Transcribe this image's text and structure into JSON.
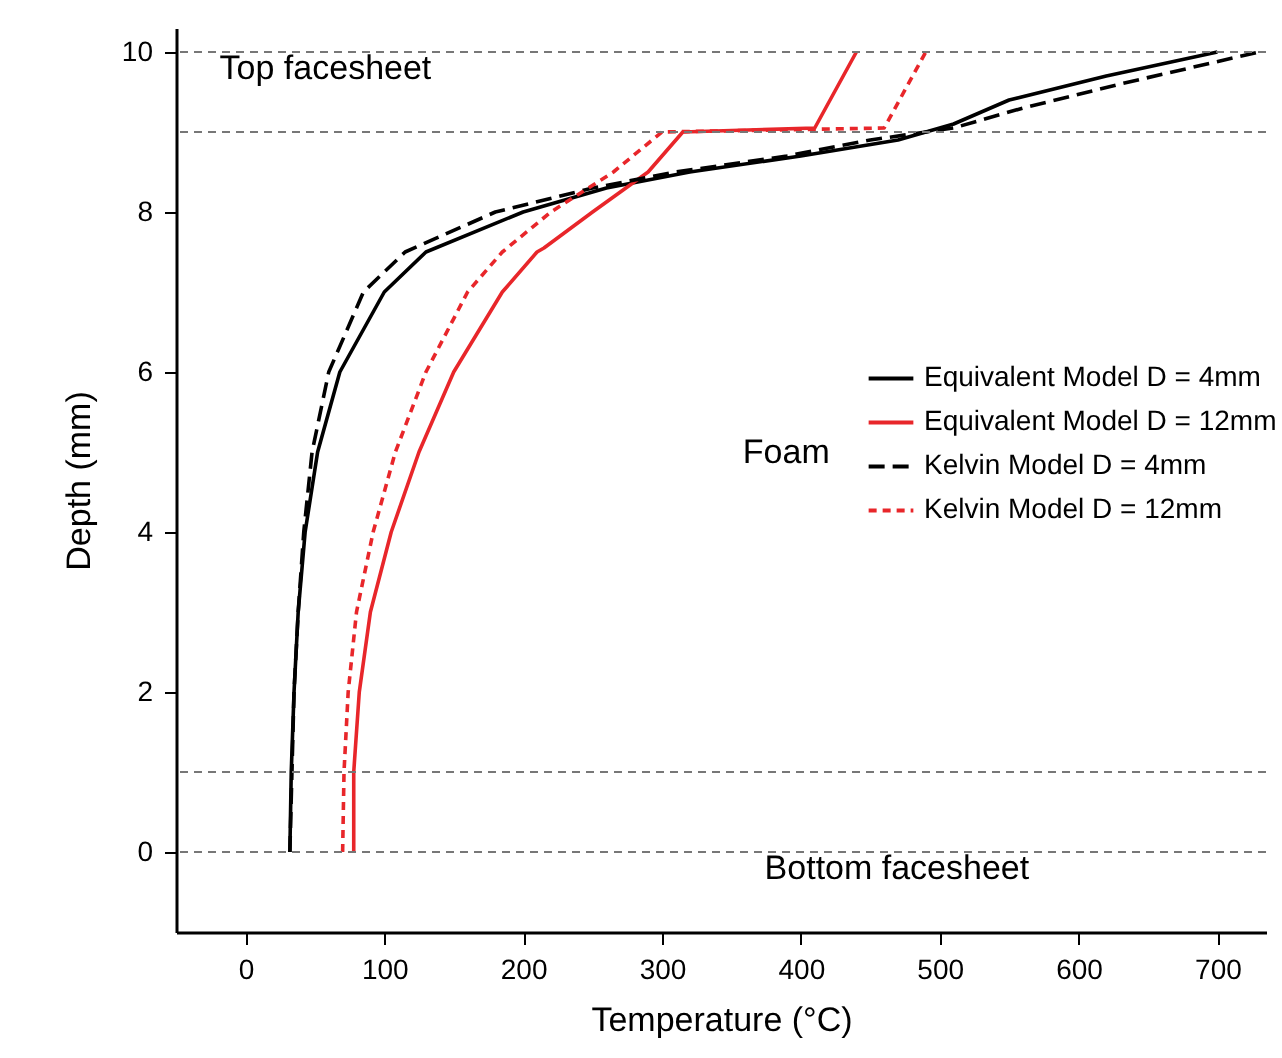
{
  "chart_data": {
    "type": "line",
    "xlabel": "Temperature (°C)",
    "ylabel": "Depth (mm)",
    "xlim": [
      -50,
      735
    ],
    "ylim": [
      -1,
      10.3
    ],
    "xticks": [
      0,
      100,
      200,
      300,
      400,
      500,
      600,
      700
    ],
    "yticks": [
      0,
      2,
      4,
      6,
      8,
      10
    ],
    "grid": false,
    "legend": "right",
    "ref_lines": [
      {
        "axis": "y",
        "value": 10,
        "color": "#777777",
        "line_style": "dotted"
      },
      {
        "axis": "y",
        "value": 9,
        "color": "#777777",
        "line_style": "dotted"
      },
      {
        "axis": "y",
        "value": 1,
        "color": "#777777",
        "line_style": "dotted"
      },
      {
        "axis": "y",
        "value": 0,
        "color": "#777777",
        "line_style": "dotted"
      }
    ],
    "annotations": [
      "Top facesheet",
      "Foam",
      "Bottom facesheet"
    ],
    "series": [
      {
        "name": "Equivalent Model D = 4mm",
        "color": "#000000",
        "line_style": "solid",
        "x": [
          32,
          33,
          35,
          38,
          43,
          52,
          68,
          100,
          130,
          200,
          260,
          320,
          400,
          470,
          500,
          510,
          550,
          620,
          700
        ],
        "values": [
          0,
          1,
          2,
          3,
          4,
          5,
          6,
          7,
          7.5,
          8,
          8.3,
          8.5,
          8.7,
          8.9,
          9.05,
          9.1,
          9.4,
          9.7,
          10
        ]
      },
      {
        "name": "Equivalent Model D = 12mm",
        "color": "#e8262a",
        "line_style": "solid",
        "x": [
          78,
          78,
          82,
          90,
          105,
          125,
          150,
          185,
          210,
          215,
          250,
          290,
          315,
          410,
          440
        ],
        "values": [
          0,
          1,
          2,
          3,
          4,
          5,
          6,
          7,
          7.5,
          7.55,
          8,
          8.5,
          9,
          9.05,
          10
        ]
      },
      {
        "name": "Kelvin Model D = 4mm",
        "color": "#000000",
        "line_style": "dashed",
        "x": [
          32,
          35,
          38,
          42,
          48,
          60,
          85,
          115,
          180,
          250,
          310,
          390,
          450,
          510,
          560,
          630,
          730
        ],
        "values": [
          0,
          2,
          3,
          4,
          5,
          6,
          7,
          7.5,
          8,
          8.3,
          8.5,
          8.7,
          8.9,
          9.05,
          9.3,
          9.6,
          10
        ]
      },
      {
        "name": "Kelvin Model D = 12mm",
        "color": "#e8262a",
        "line_style": "dotted",
        "x": [
          70,
          71,
          74,
          80,
          92,
          108,
          130,
          160,
          185,
          220,
          265,
          300,
          460,
          490
        ],
        "values": [
          0,
          1,
          2,
          3,
          4,
          5,
          6,
          7,
          7.5,
          8,
          8.5,
          9,
          9.05,
          10
        ]
      }
    ]
  }
}
